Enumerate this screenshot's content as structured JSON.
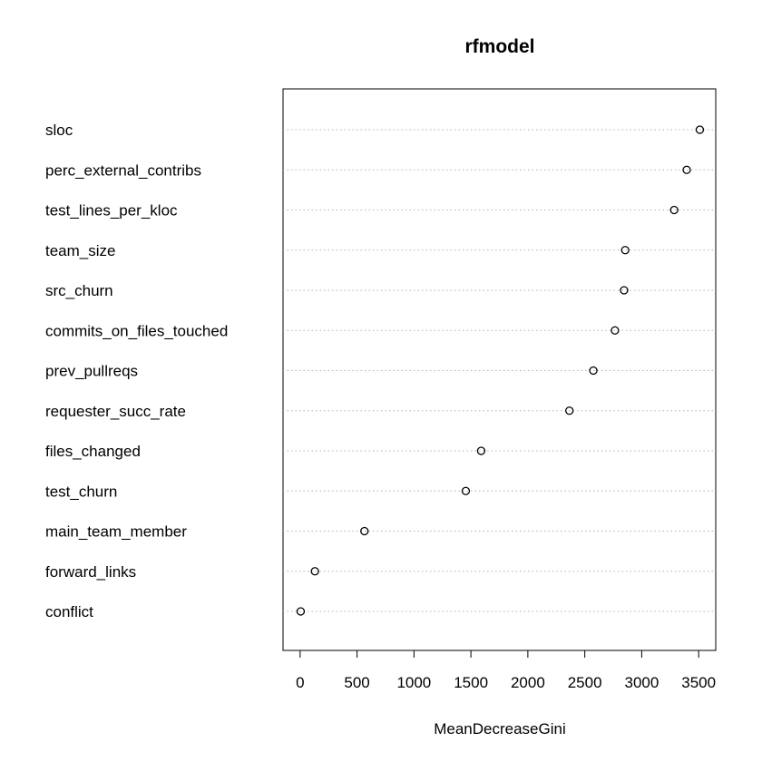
{
  "chart_data": {
    "type": "scatter",
    "subtype": "dotchart",
    "title": "rfmodel",
    "xlabel": "MeanDecreaseGini",
    "ylabel": "",
    "xlim": [
      -150,
      3650
    ],
    "xticks": [
      0,
      500,
      1000,
      1500,
      2000,
      2500,
      3000,
      3500
    ],
    "grid": "dotted horizontal guide lines",
    "legend": "none",
    "items": [
      {
        "label": "sloc",
        "value": 3510
      },
      {
        "label": "perc_external_contribs",
        "value": 3395
      },
      {
        "label": "test_lines_per_kloc",
        "value": 3285
      },
      {
        "label": "team_size",
        "value": 2855
      },
      {
        "label": "src_churn",
        "value": 2845
      },
      {
        "label": "commits_on_files_touched",
        "value": 2765
      },
      {
        "label": "prev_pullreqs",
        "value": 2575
      },
      {
        "label": "requester_succ_rate",
        "value": 2365
      },
      {
        "label": "files_changed",
        "value": 1590
      },
      {
        "label": "test_churn",
        "value": 1455
      },
      {
        "label": "main_team_member",
        "value": 565
      },
      {
        "label": "forward_links",
        "value": 130
      },
      {
        "label": "conflict",
        "value": 5
      }
    ]
  }
}
